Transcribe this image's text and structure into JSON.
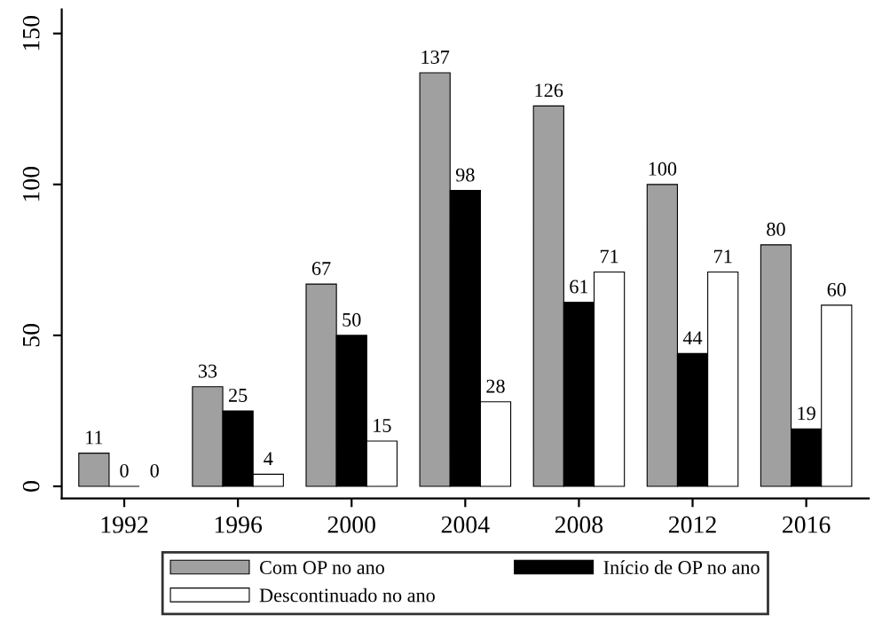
{
  "chart_data": {
    "type": "bar",
    "categories": [
      "1992",
      "1996",
      "2000",
      "2004",
      "2008",
      "2012",
      "2016"
    ],
    "series": [
      {
        "name": "Com OP no ano",
        "color": "#a0a0a0",
        "values": [
          11,
          33,
          67,
          137,
          126,
          100,
          80
        ]
      },
      {
        "name": "Início de OP no ano",
        "color": "#000000",
        "values": [
          0,
          25,
          50,
          98,
          61,
          44,
          19
        ]
      },
      {
        "name": "Descontinuado no ano",
        "color": "#ffffff",
        "values": [
          0,
          4,
          15,
          28,
          71,
          71,
          60
        ]
      }
    ],
    "ylim": [
      -4,
      158
    ],
    "yticks": [
      0,
      50,
      100,
      150
    ],
    "grid": false,
    "legend": "bottom",
    "data_labels": true
  }
}
